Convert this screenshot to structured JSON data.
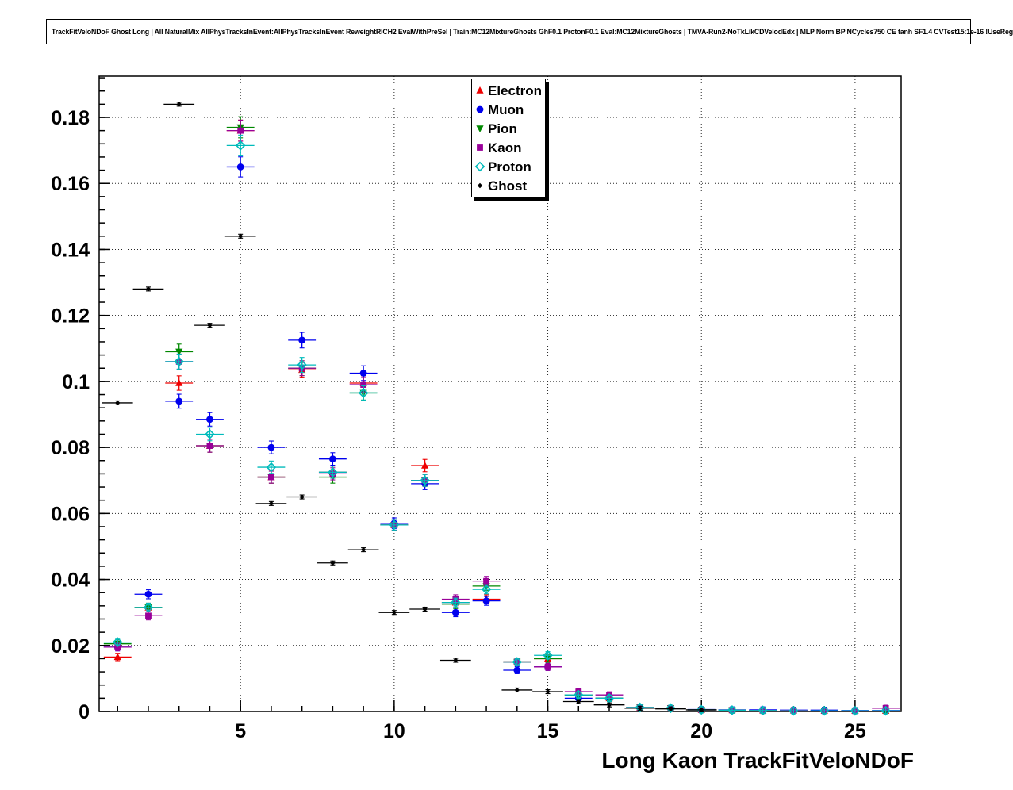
{
  "header": {
    "title": "TrackFitVeloNDoF Ghost Long | All NaturalMix AllPhysTracksInEvent:AllPhysTracksInEvent ReweightRICH2 EvalWithPreSel | Train:MC12MixtureGhosts GhF0.1 ProtonF0.1 Eval:MC12MixtureGhosts | TMVA-Run2-NoTkLikCDVelodEdx | MLP Norm BP NCycles750 CE tanh SF1.4 CVTest15:1e-16 !UseReg"
  },
  "chart_data": {
    "type": "scatter",
    "title": "",
    "xlabel": "Long Kaon TrackFitVeloNDoF",
    "ylabel": "",
    "xlim": [
      0.4,
      26.5
    ],
    "ylim": [
      0,
      0.1925
    ],
    "grid": true,
    "grid_style": "dotted",
    "legend_position": "top-center",
    "x_ticks": [
      5,
      10,
      15,
      20,
      25
    ],
    "x_tick_labels": [
      "5",
      "10",
      "15",
      "20",
      "25"
    ],
    "y_ticks": [
      0,
      0.02,
      0.04,
      0.06,
      0.08,
      0.1,
      0.12,
      0.14,
      0.16,
      0.18
    ],
    "y_tick_labels": [
      "0",
      "0.02",
      "0.04",
      "0.06",
      "0.08",
      "0.1",
      "0.12",
      "0.14",
      "0.16",
      "0.18"
    ],
    "x_values": [
      1,
      2,
      3,
      4,
      5,
      6,
      7,
      8,
      9,
      10,
      11,
      12,
      13,
      14,
      15,
      16,
      17,
      18,
      19,
      20,
      21,
      22,
      23,
      24,
      25,
      26
    ],
    "series": [
      {
        "name": "Electron",
        "marker": "triangle-up",
        "color": "#ee0000",
        "values": [
          0.0165,
          0.0315,
          0.0995,
          0.0805,
          0.176,
          0.071,
          0.1035,
          0.0725,
          0.0995,
          0.0565,
          0.0745,
          0.033,
          0.034,
          0.015,
          0.016,
          0.005,
          0.004,
          0.0012,
          0.001,
          0.0005,
          0.0004,
          0.0003,
          0.0003,
          0.0002,
          0.0002,
          0.0002
        ]
      },
      {
        "name": "Muon",
        "marker": "circle",
        "color": "#0000ee",
        "values": [
          0.0195,
          0.0355,
          0.094,
          0.0885,
          0.165,
          0.08,
          0.1125,
          0.0765,
          0.1025,
          0.057,
          0.069,
          0.03,
          0.0335,
          0.0125,
          0.0135,
          0.004,
          0.004,
          0.0012,
          0.001,
          0.0006,
          0.0005,
          0.0005,
          0.0004,
          0.0004,
          0.0003,
          0.0003
        ]
      },
      {
        "name": "Pion",
        "marker": "triangle-down",
        "color": "#008800",
        "values": [
          0.0205,
          0.0315,
          0.109,
          0.0805,
          0.177,
          0.071,
          0.104,
          0.071,
          0.0965,
          0.0565,
          0.07,
          0.0325,
          0.038,
          0.015,
          0.016,
          0.005,
          0.004,
          0.0012,
          0.001,
          0.0005,
          0.0004,
          0.0003,
          0.0002,
          0.0002,
          0.0002,
          0.0002
        ]
      },
      {
        "name": "Kaon",
        "marker": "square",
        "color": "#990099",
        "values": [
          0.0195,
          0.029,
          0.106,
          0.0805,
          0.176,
          0.071,
          0.104,
          0.072,
          0.099,
          0.0565,
          0.07,
          0.034,
          0.0395,
          0.015,
          0.0135,
          0.006,
          0.005,
          0.0012,
          0.001,
          0.0005,
          0.0004,
          0.0003,
          0.0003,
          0.0002,
          0.0002,
          0.001
        ]
      },
      {
        "name": "Proton",
        "marker": "diamond-open",
        "color": "#00bbbb",
        "values": [
          0.021,
          0.0315,
          0.106,
          0.084,
          0.1715,
          0.074,
          0.105,
          0.0725,
          0.0965,
          0.0565,
          0.07,
          0.033,
          0.037,
          0.015,
          0.017,
          0.005,
          0.004,
          0.0012,
          0.001,
          0.0005,
          0.0004,
          0.0003,
          0.0002,
          0.0002,
          0.0002,
          0.0002
        ]
      },
      {
        "name": "Ghost",
        "marker": "diamond-small",
        "color": "#000000",
        "x_values": [
          1,
          2,
          3,
          4,
          5,
          6,
          7,
          8,
          9,
          10,
          11,
          12,
          14,
          15,
          16,
          17,
          18,
          19,
          20
        ],
        "values": [
          0.0935,
          0.128,
          0.184,
          0.117,
          0.144,
          0.063,
          0.065,
          0.045,
          0.049,
          0.03,
          0.031,
          0.0155,
          0.0065,
          0.006,
          0.003,
          0.002,
          0.001,
          0.0008,
          0.0005
        ]
      }
    ]
  }
}
